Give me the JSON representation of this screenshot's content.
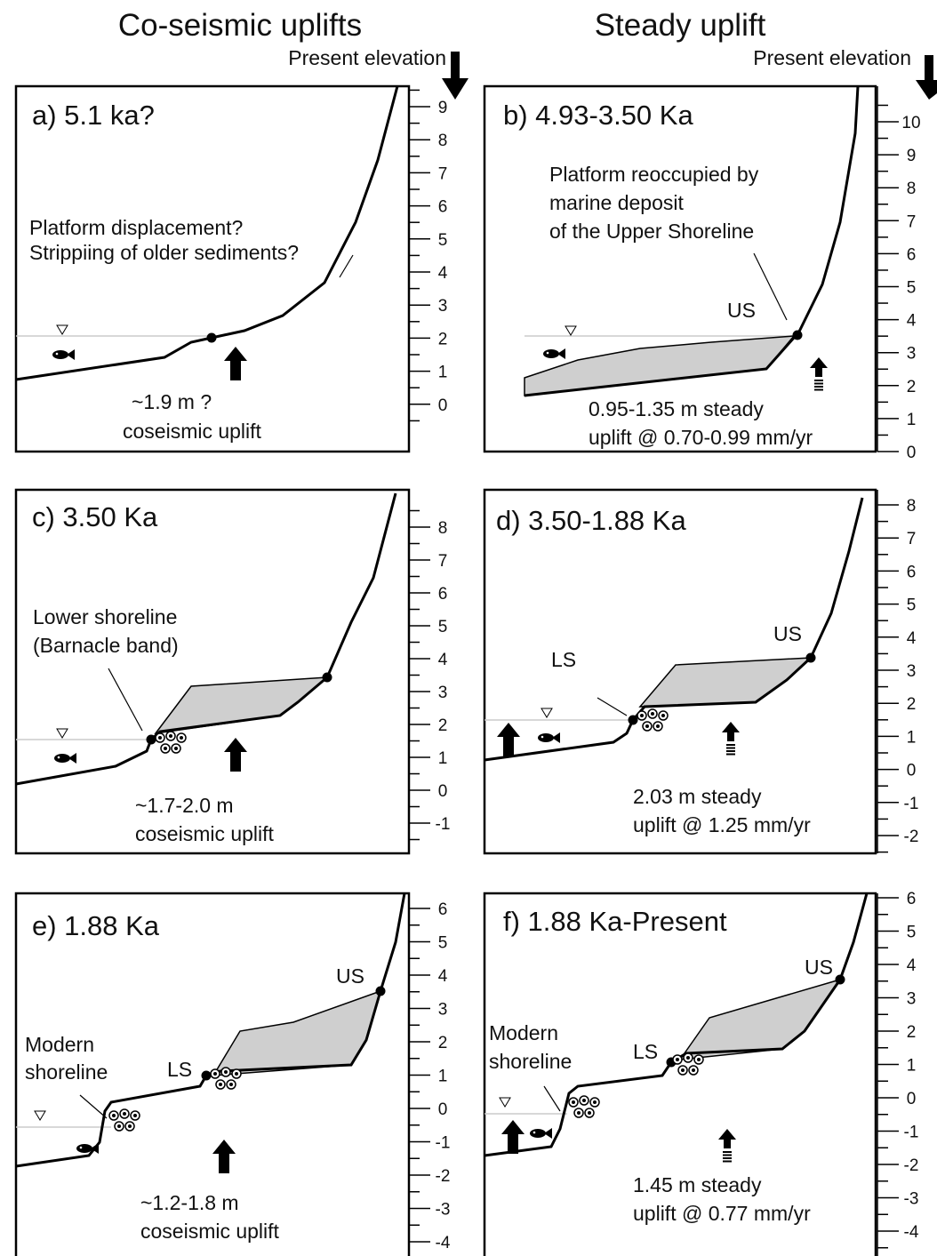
{
  "header": {
    "left": "Co-seismic uplifts",
    "right": "Steady uplift"
  },
  "elevation_labels": [
    "Present elevation",
    "Present elevation"
  ],
  "panels": [
    {
      "title": "a) 5.1 ka?",
      "notes": [
        "Platform displacement?",
        "Strippiing of older sediments?",
        "~1.9 m ?",
        "coseismic uplift"
      ],
      "scale": [
        9,
        8,
        7,
        6,
        5,
        4,
        3,
        2,
        1,
        0
      ]
    },
    {
      "title": "b) 4.93-3.50 Ka",
      "notes": [
        "Platform reoccupied by",
        "marine deposit",
        "of the Upper Shoreline",
        "US",
        "0.95-1.35 m steady",
        "uplift @ 0.70-0.99 mm/yr"
      ],
      "scale": [
        10,
        9,
        8,
        7,
        6,
        5,
        4,
        3,
        2,
        1,
        0
      ]
    },
    {
      "title": "c) 3.50 Ka",
      "notes": [
        "Lower shoreline",
        "(Barnacle band)",
        "~1.7-2.0 m",
        "coseismic uplift"
      ],
      "scale": [
        8,
        7,
        6,
        5,
        4,
        3,
        2,
        1,
        0,
        -1
      ]
    },
    {
      "title": "d) 3.50-1.88 Ka",
      "notes": [
        "LS",
        "US",
        "2.03 m steady",
        "uplift @ 1.25 mm/yr"
      ],
      "scale": [
        8,
        7,
        6,
        5,
        4,
        3,
        2,
        1,
        0,
        -1,
        -2
      ]
    },
    {
      "title": "e) 1.88 Ka",
      "notes": [
        "US",
        "Modern",
        "shoreline",
        "LS",
        "~1.2-1.8 m",
        "coseismic uplift"
      ],
      "scale": [
        6,
        5,
        4,
        3,
        2,
        1,
        0,
        -1,
        -2,
        -3,
        -4
      ]
    },
    {
      "title": "f) 1.88 Ka-Present",
      "notes": [
        "US",
        "Modern",
        "shoreline",
        "LS",
        "1.45 m steady",
        "uplift @ 0.77 mm/yr"
      ],
      "scale": [
        6,
        5,
        4,
        3,
        2,
        1,
        0,
        -1,
        -2,
        -3,
        -4
      ]
    }
  ]
}
